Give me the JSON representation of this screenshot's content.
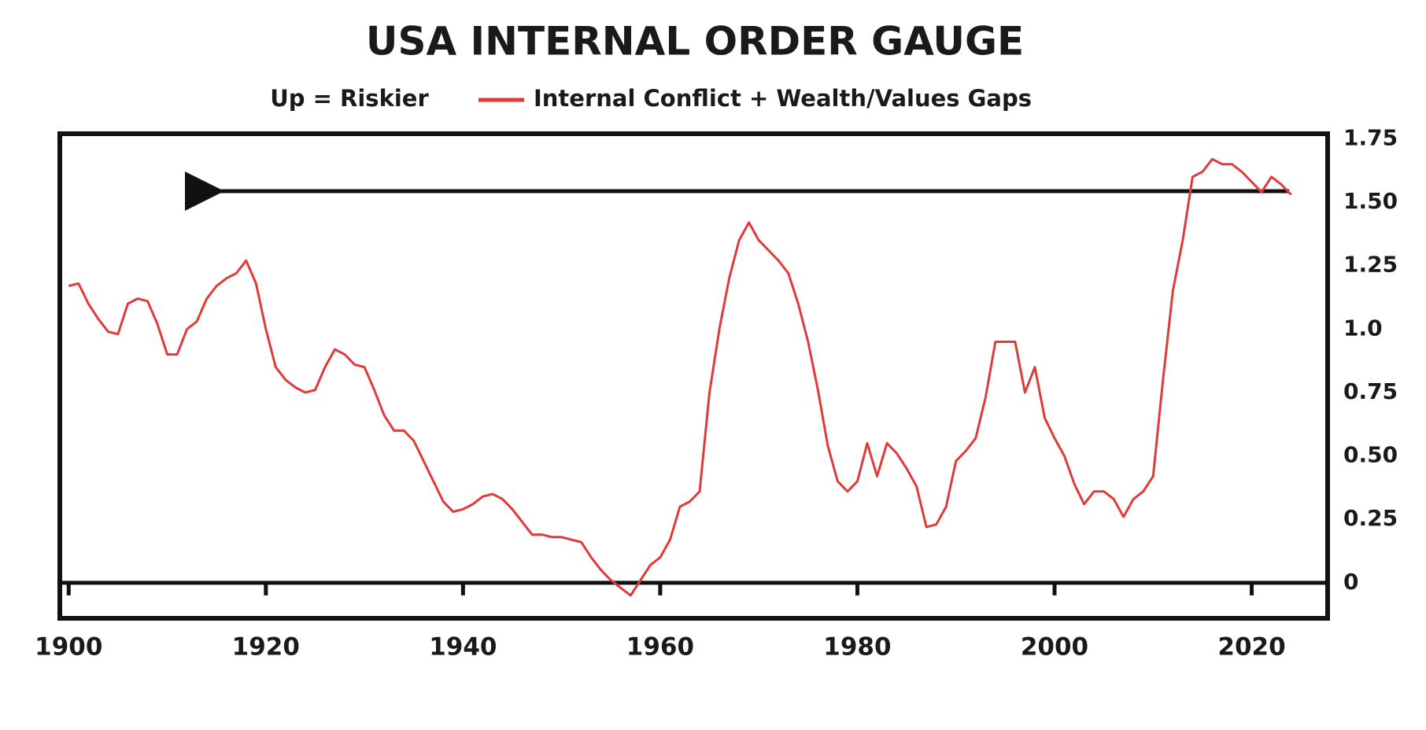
{
  "chart_data": {
    "type": "line",
    "title": "USA INTERNAL ORDER GAUGE",
    "annotations": [
      "Up = Riskier"
    ],
    "x": [
      1900,
      1901,
      1902,
      1903,
      1904,
      1905,
      1906,
      1907,
      1908,
      1909,
      1910,
      1911,
      1912,
      1913,
      1914,
      1915,
      1916,
      1917,
      1918,
      1919,
      1920,
      1921,
      1922,
      1923,
      1924,
      1925,
      1926,
      1927,
      1928,
      1929,
      1930,
      1931,
      1932,
      1933,
      1934,
      1935,
      1936,
      1937,
      1938,
      1939,
      1940,
      1941,
      1942,
      1943,
      1944,
      1945,
      1946,
      1947,
      1948,
      1949,
      1950,
      1951,
      1952,
      1953,
      1954,
      1955,
      1956,
      1957,
      1958,
      1959,
      1960,
      1961,
      1962,
      1963,
      1964,
      1965,
      1966,
      1967,
      1968,
      1969,
      1970,
      1971,
      1972,
      1973,
      1974,
      1975,
      1976,
      1977,
      1978,
      1979,
      1980,
      1981,
      1982,
      1983,
      1984,
      1985,
      1986,
      1987,
      1988,
      1989,
      1990,
      1991,
      1992,
      1993,
      1994,
      1995,
      1996,
      1997,
      1998,
      1999,
      2000,
      2001,
      2002,
      2003,
      2004,
      2005,
      2006,
      2007,
      2008,
      2009,
      2010,
      2011,
      2012,
      2013,
      2014,
      2015,
      2016,
      2017,
      2018,
      2019,
      2020,
      2021,
      2022,
      2023,
      2024
    ],
    "series": [
      {
        "name": "Internal Conflict + Wealth/Values Gaps",
        "color": "#e03a3a",
        "values": [
          1.17,
          1.18,
          1.1,
          1.04,
          0.99,
          0.98,
          1.1,
          1.12,
          1.11,
          1.02,
          0.9,
          0.9,
          1.0,
          1.03,
          1.12,
          1.17,
          1.2,
          1.22,
          1.27,
          1.18,
          1.0,
          0.85,
          0.8,
          0.77,
          0.75,
          0.76,
          0.85,
          0.92,
          0.9,
          0.86,
          0.85,
          0.76,
          0.66,
          0.6,
          0.6,
          0.56,
          0.48,
          0.4,
          0.32,
          0.28,
          0.29,
          0.31,
          0.34,
          0.35,
          0.33,
          0.29,
          0.24,
          0.19,
          0.19,
          0.18,
          0.18,
          0.17,
          0.16,
          0.1,
          0.05,
          0.01,
          -0.02,
          -0.05,
          0.01,
          0.07,
          0.1,
          0.17,
          0.3,
          0.32,
          0.36,
          0.75,
          1.0,
          1.2,
          1.35,
          1.42,
          1.35,
          1.31,
          1.27,
          1.22,
          1.1,
          0.95,
          0.76,
          0.54,
          0.4,
          0.36,
          0.4,
          0.55,
          0.42,
          0.55,
          0.51,
          0.45,
          0.38,
          0.22,
          0.23,
          0.3,
          0.48,
          0.52,
          0.57,
          0.73,
          0.95,
          0.95,
          0.95,
          0.75,
          0.85,
          0.65,
          0.57,
          0.5,
          0.39,
          0.31,
          0.36,
          0.36,
          0.33,
          0.26,
          0.33,
          0.36,
          0.42,
          0.8,
          1.15,
          1.35,
          1.6,
          1.62,
          1.67,
          1.65,
          1.65,
          1.62,
          1.58,
          1.54,
          1.6,
          1.57,
          1.53
        ]
      }
    ],
    "xlim": [
      1899.1,
      2027.7
    ],
    "xticks": [
      1900,
      1920,
      1940,
      1960,
      1980,
      2000,
      2020
    ],
    "ylim": [
      -0.14,
      1.77
    ],
    "yticks": [
      0,
      0.25,
      {
        "value": 0.5,
        "label": "0.50"
      },
      0.75,
      {
        "value": 1.0,
        "label": "1.0"
      },
      1.25,
      {
        "value": 1.5,
        "label": "1.50"
      },
      1.75
    ],
    "grid": false,
    "legend": "top"
  }
}
